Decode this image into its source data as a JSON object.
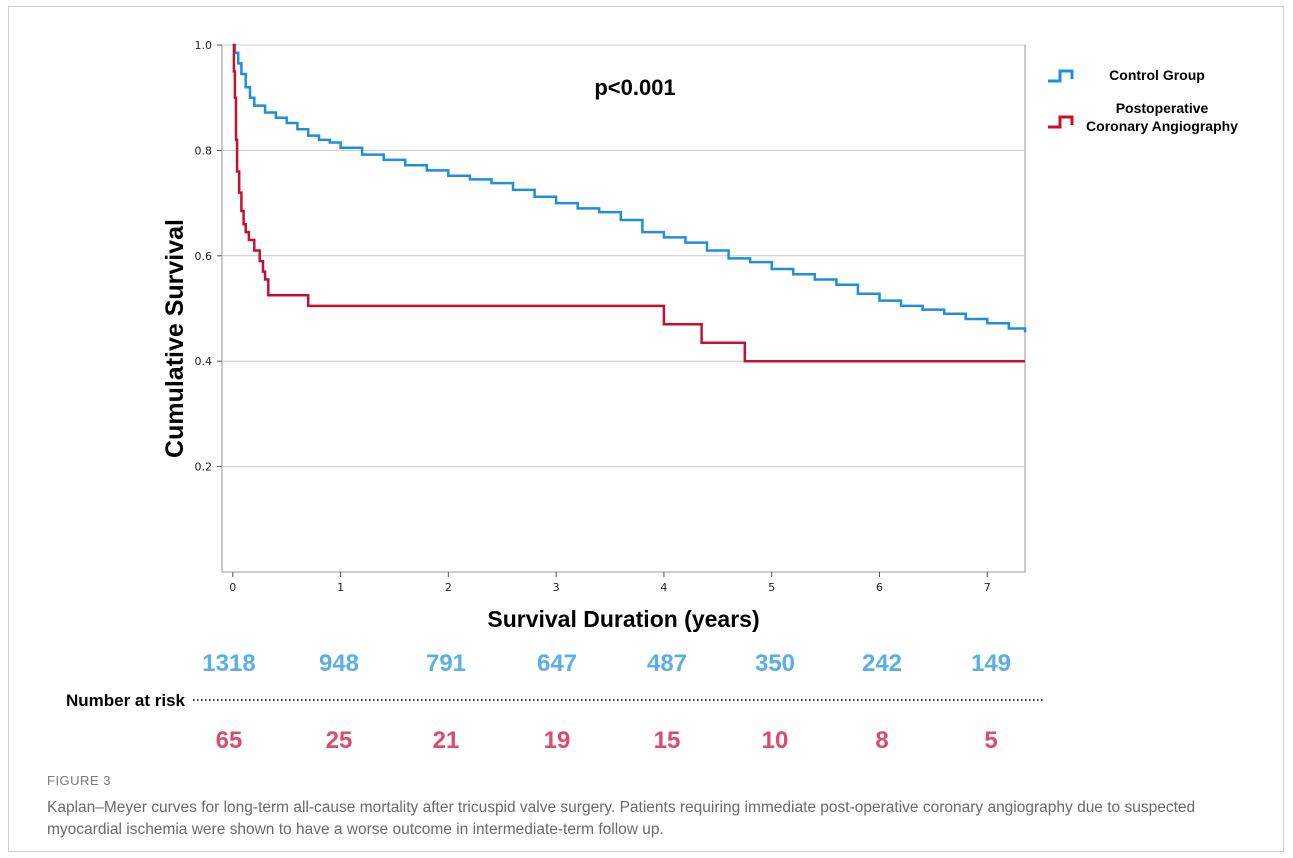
{
  "chart_data": {
    "type": "line",
    "subtype": "kaplan-meier",
    "ylabel": "Cumulative Survival",
    "xlabel": "Survival Duration (years)",
    "annotation": "p<0.001",
    "xlim": [
      -0.1,
      7.35
    ],
    "ylim": [
      0.0,
      1.0
    ],
    "x_ticks": [
      0,
      1,
      2,
      3,
      4,
      5,
      6,
      7
    ],
    "y_ticks": [
      0.2,
      0.4,
      0.6,
      0.8,
      1.0
    ],
    "y_tick_labels": [
      "0.2",
      "0.4",
      "0.6",
      "0.8",
      "1.0"
    ],
    "grid": "horizontal",
    "legend_position": "top-right",
    "series": [
      {
        "name": "Control Group",
        "legend_lines": [
          "Control Group"
        ],
        "color": "#1f8fdc",
        "points": [
          [
            0,
            1.0
          ],
          [
            0.02,
            0.985
          ],
          [
            0.05,
            0.965
          ],
          [
            0.08,
            0.945
          ],
          [
            0.12,
            0.92
          ],
          [
            0.16,
            0.9
          ],
          [
            0.2,
            0.885
          ],
          [
            0.3,
            0.872
          ],
          [
            0.4,
            0.862
          ],
          [
            0.5,
            0.852
          ],
          [
            0.6,
            0.84
          ],
          [
            0.7,
            0.828
          ],
          [
            0.8,
            0.82
          ],
          [
            0.9,
            0.815
          ],
          [
            1.0,
            0.805
          ],
          [
            1.2,
            0.792
          ],
          [
            1.4,
            0.782
          ],
          [
            1.6,
            0.772
          ],
          [
            1.8,
            0.762
          ],
          [
            2.0,
            0.752
          ],
          [
            2.2,
            0.745
          ],
          [
            2.4,
            0.738
          ],
          [
            2.6,
            0.725
          ],
          [
            2.8,
            0.712
          ],
          [
            3.0,
            0.7
          ],
          [
            3.2,
            0.69
          ],
          [
            3.4,
            0.683
          ],
          [
            3.6,
            0.668
          ],
          [
            3.8,
            0.645
          ],
          [
            4.0,
            0.635
          ],
          [
            4.2,
            0.625
          ],
          [
            4.4,
            0.61
          ],
          [
            4.6,
            0.595
          ],
          [
            4.8,
            0.588
          ],
          [
            5.0,
            0.575
          ],
          [
            5.2,
            0.565
          ],
          [
            5.4,
            0.555
          ],
          [
            5.6,
            0.545
          ],
          [
            5.8,
            0.528
          ],
          [
            6.0,
            0.515
          ],
          [
            6.2,
            0.505
          ],
          [
            6.4,
            0.498
          ],
          [
            6.6,
            0.49
          ],
          [
            6.8,
            0.48
          ],
          [
            7.0,
            0.472
          ],
          [
            7.2,
            0.462
          ],
          [
            7.35,
            0.455
          ]
        ]
      },
      {
        "name": "Postoperative Coronary Angiography",
        "legend_lines": [
          "Postoperative",
          "Coronary Angiography"
        ],
        "color": "#c8102e",
        "points": [
          [
            0,
            1.0
          ],
          [
            0.01,
            0.95
          ],
          [
            0.02,
            0.9
          ],
          [
            0.03,
            0.82
          ],
          [
            0.04,
            0.76
          ],
          [
            0.06,
            0.72
          ],
          [
            0.08,
            0.685
          ],
          [
            0.1,
            0.66
          ],
          [
            0.12,
            0.645
          ],
          [
            0.15,
            0.63
          ],
          [
            0.2,
            0.61
          ],
          [
            0.25,
            0.59
          ],
          [
            0.28,
            0.57
          ],
          [
            0.3,
            0.555
          ],
          [
            0.33,
            0.525
          ],
          [
            0.7,
            0.505
          ],
          [
            4.0,
            0.47
          ],
          [
            4.35,
            0.435
          ],
          [
            4.75,
            0.4
          ],
          [
            7.35,
            0.4
          ]
        ]
      }
    ],
    "risk_table": {
      "label": "Number at risk",
      "control": [
        "1318",
        "948",
        "791",
        "647",
        "487",
        "350",
        "242",
        "149"
      ],
      "angiography": [
        "65",
        "25",
        "21",
        "19",
        "15",
        "10",
        "8",
        "5"
      ]
    }
  },
  "caption": {
    "label": "FIGURE 3",
    "text": "Kaplan–Meyer curves for long-term all-cause mortality after tricuspid valve surgery. Patients requiring immediate post-operative coronary angiography due to suspected myocardial ischemia were shown to have a worse outcome in intermediate-term follow up."
  }
}
